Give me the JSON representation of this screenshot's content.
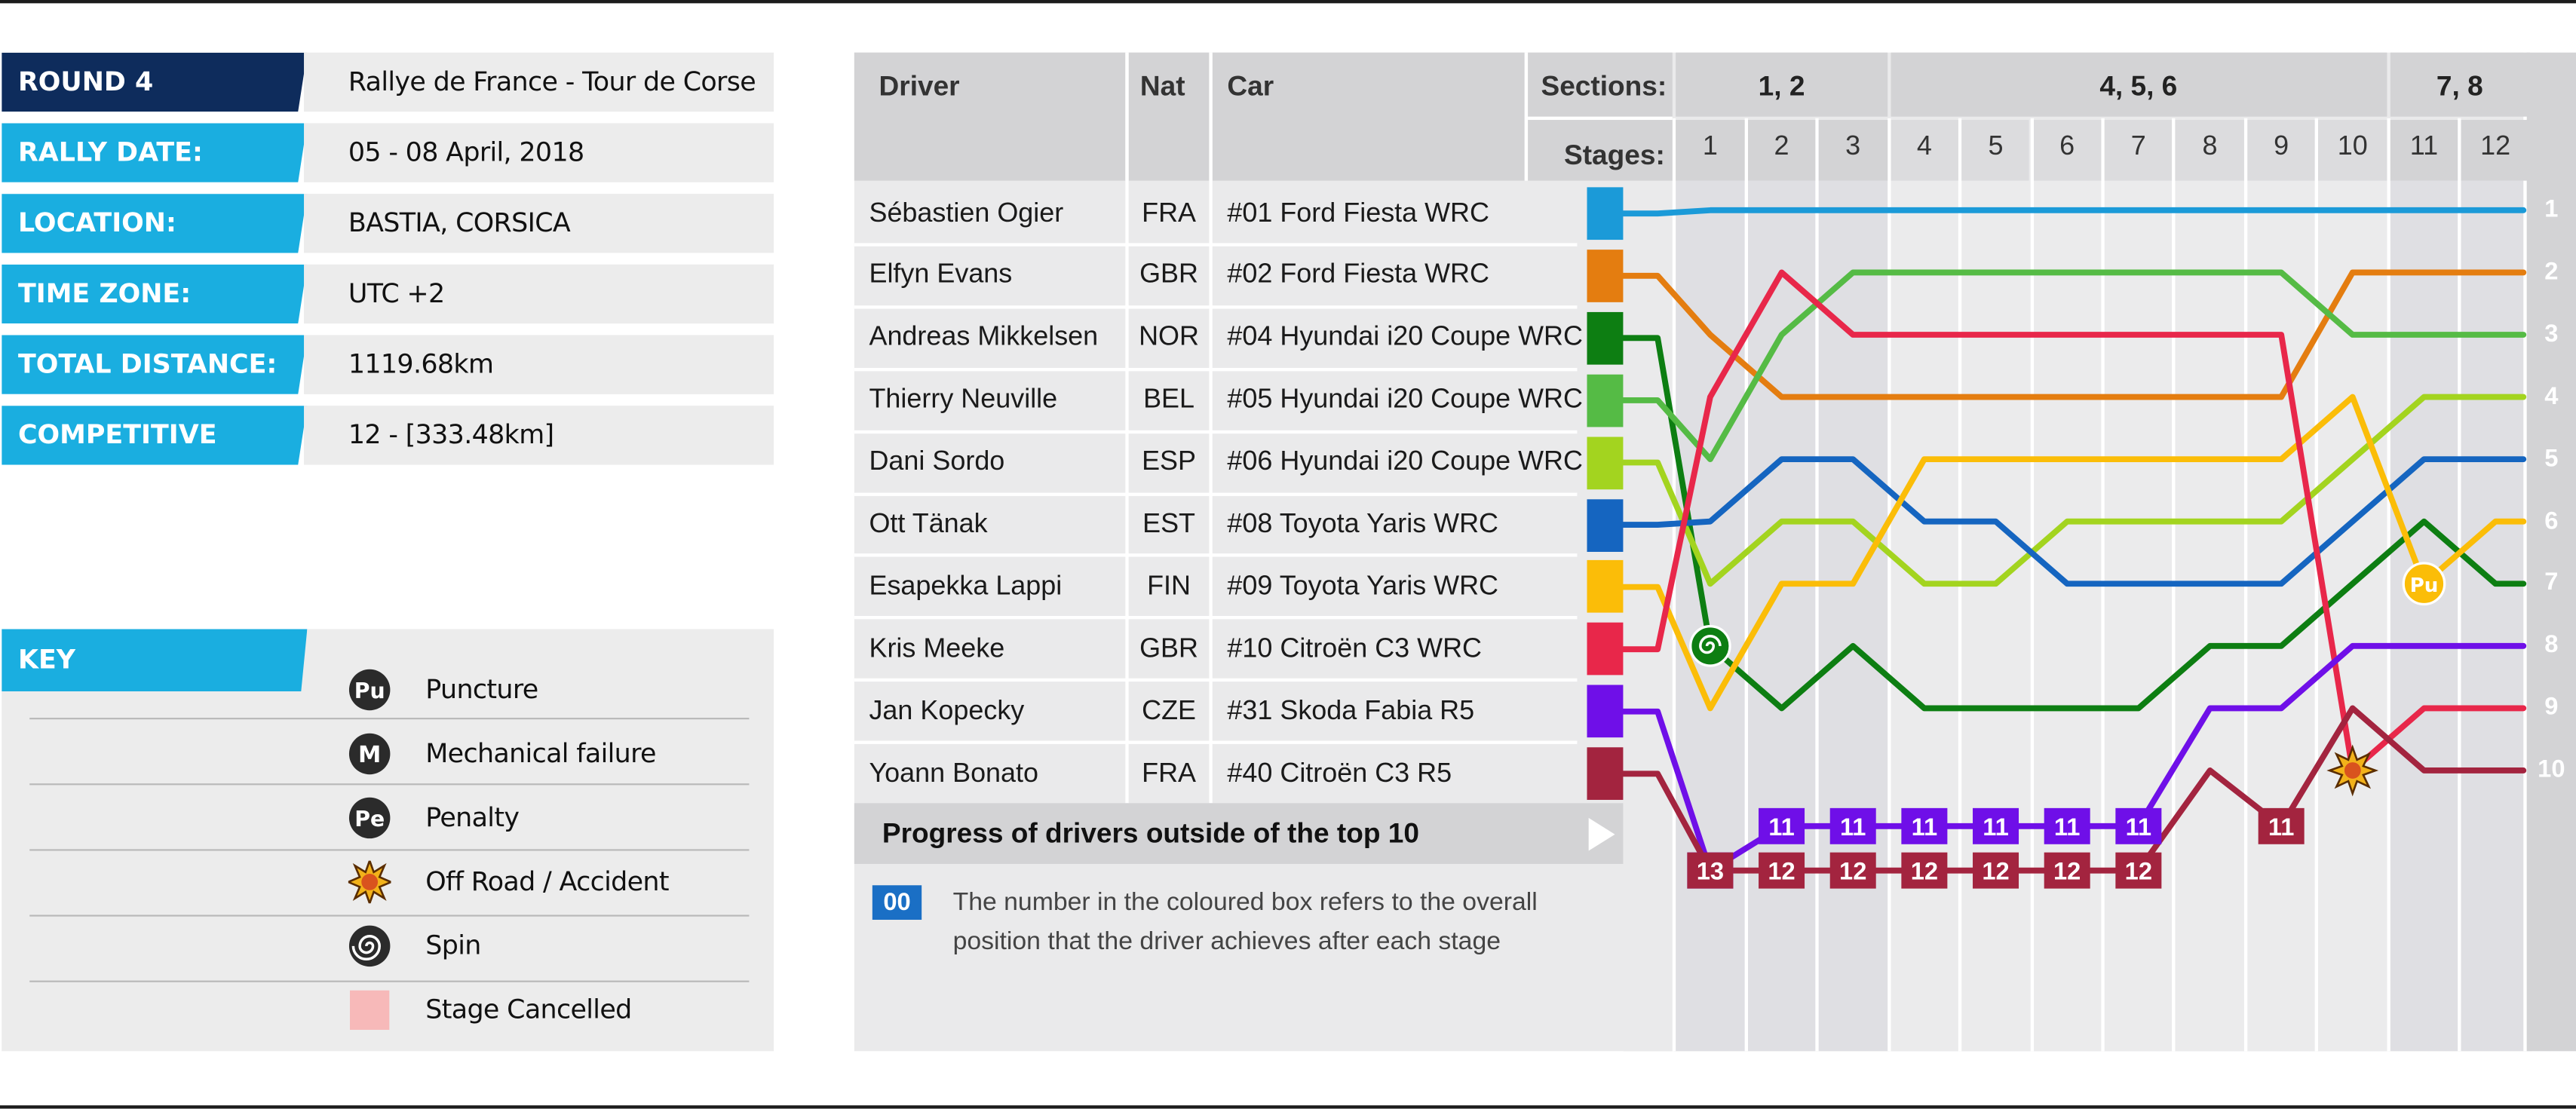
{
  "info": [
    {
      "label": "ROUND 4",
      "value": "Rallye de France - Tour de Corse",
      "color": "#0e2c5c"
    },
    {
      "label": "RALLY DATE:",
      "value": "05 - 08 April, 2018",
      "color": "#1aaee0"
    },
    {
      "label": "LOCATION:",
      "value": "BASTIA, CORSICA",
      "color": "#1aaee0"
    },
    {
      "label": "TIME ZONE:",
      "value": "UTC +2",
      "color": "#1aaee0"
    },
    {
      "label": "TOTAL DISTANCE:",
      "value": "1119.68km",
      "color": "#1aaee0"
    },
    {
      "label": "COMPETITIVE STAGES:",
      "value": "12 - [333.48km]",
      "color": "#1aaee0"
    }
  ],
  "key": {
    "title": "KEY",
    "items": [
      {
        "icon": "puncture-icon",
        "label": "Puncture",
        "symbol": "Pu"
      },
      {
        "icon": "mechanical-failure-icon",
        "label": "Mechanical failure",
        "symbol": "M"
      },
      {
        "icon": "penalty-icon",
        "label": "Penalty",
        "symbol": "Pe"
      },
      {
        "icon": "off-road-accident-icon",
        "label": "Off Road / Accident",
        "symbol": ""
      },
      {
        "icon": "spin-icon",
        "label": "Spin",
        "symbol": ""
      },
      {
        "icon": "stage-cancelled-icon",
        "label": "Stage Cancelled",
        "symbol": ""
      }
    ]
  },
  "table": {
    "headers": {
      "driver": "Driver",
      "nat": "Nat",
      "car": "Car",
      "sections": "Sections:",
      "stages": "Stages:"
    },
    "sections": [
      {
        "label": "1, 2",
        "stages": [
          1,
          3
        ]
      },
      {
        "label": "4, 5, 6",
        "stages": [
          4,
          10
        ]
      },
      {
        "label": "7, 8",
        "stages": [
          11,
          12
        ]
      }
    ],
    "banner": "Progress of drivers outside of the top 10",
    "note_box": "00",
    "note": "The number in the coloured box refers to the overall position that the driver achieves after each stage"
  },
  "chart_data": {
    "type": "line",
    "title": "",
    "xlabel": "Stages:",
    "ylabel": "",
    "stages": [
      1,
      2,
      3,
      4,
      5,
      6,
      7,
      8,
      9,
      10,
      11,
      12
    ],
    "final_positions": [
      1,
      2,
      3,
      4,
      5,
      6,
      7,
      8,
      9,
      10
    ],
    "series": [
      {
        "name": "Sébastien Ogier",
        "nat": "FRA",
        "car": "#01  Ford Fiesta WRC",
        "color": "#1b9ad8",
        "start": 1,
        "positions": [
          1,
          1,
          1,
          1,
          1,
          1,
          1,
          1,
          1,
          1,
          1,
          1
        ]
      },
      {
        "name": "Elfyn Evans",
        "nat": "GBR",
        "car": "#02  Ford Fiesta WRC",
        "color": "#e47d10",
        "start": 2,
        "positions": [
          3,
          4,
          4,
          4,
          4,
          4,
          4,
          4,
          4,
          2,
          2,
          2
        ]
      },
      {
        "name": "Andreas Mikkelsen",
        "nat": "NOR",
        "car": "#04  Hyundai i20 Coupe WRC",
        "color": "#0d7e12",
        "start": 3,
        "positions": [
          8,
          9,
          8,
          9,
          9,
          9,
          9,
          8,
          8,
          7,
          6,
          7
        ]
      },
      {
        "name": "Thierry Neuville",
        "nat": "BEL",
        "car": "#05  Hyundai i20 Coupe WRC",
        "color": "#55bb45",
        "start": 4,
        "positions": [
          5,
          3,
          2,
          2,
          2,
          2,
          2,
          2,
          2,
          3,
          3,
          3
        ]
      },
      {
        "name": "Dani Sordo",
        "nat": "ESP",
        "car": "#06  Hyundai i20 Coupe WRC",
        "color": "#a3d41f",
        "start": 5,
        "positions": [
          7,
          6,
          6,
          7,
          7,
          6,
          6,
          6,
          6,
          5,
          4,
          4
        ]
      },
      {
        "name": "Ott Tänak",
        "nat": "EST",
        "car": "#08  Toyota Yaris WRC",
        "color": "#1565c0",
        "start": 6,
        "positions": [
          6,
          5,
          5,
          6,
          6,
          7,
          7,
          7,
          7,
          6,
          5,
          5
        ]
      },
      {
        "name": "Esapekka Lappi",
        "nat": "FIN",
        "car": "#09  Toyota Yaris WRC",
        "color": "#fbbd08",
        "start": 7,
        "positions": [
          9,
          7,
          7,
          5,
          5,
          5,
          5,
          5,
          5,
          4,
          7,
          6
        ]
      },
      {
        "name": "Kris Meeke",
        "nat": "GBR",
        "car": "#10  Citroën C3 WRC",
        "color": "#e8274a",
        "start": 8,
        "positions": [
          4,
          2,
          3,
          3,
          3,
          3,
          3,
          3,
          3,
          10,
          9,
          9
        ]
      },
      {
        "name": "Jan Kopecky",
        "nat": "CZE",
        "car": "#31  Skoda Fabia R5",
        "color": "#6f0fe8",
        "start": 9,
        "positions": [
          12,
          11,
          11,
          11,
          11,
          11,
          11,
          9,
          9,
          8,
          8,
          8
        ]
      },
      {
        "name": "Yoann Bonato",
        "nat": "FRA",
        "car": "#40  Citroën C3 R5",
        "color": "#a3243f",
        "start": 10,
        "positions": [
          13,
          12,
          12,
          12,
          12,
          12,
          12,
          10,
          11,
          9,
          10,
          10
        ]
      }
    ],
    "events": [
      {
        "driver": "Andreas Mikkelsen",
        "stage": 1,
        "type": "spin"
      },
      {
        "driver": "Kris Meeke",
        "stage": 10,
        "type": "off-road-accident"
      },
      {
        "driver": "Esapekka Lappi",
        "stage": 11,
        "type": "puncture",
        "symbol": "Pu"
      }
    ]
  }
}
